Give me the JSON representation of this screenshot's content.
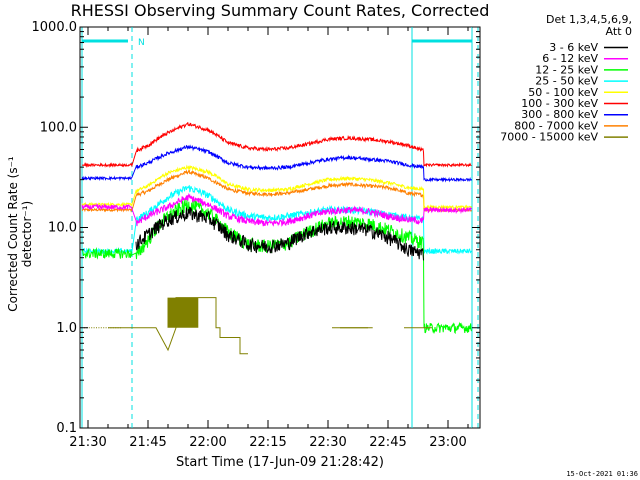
{
  "chart_data": {
    "type": "line",
    "title": "RHESSI Observing Summary Count Rates, Corrected",
    "xlabel": "Start Time (17-Jun-09 21:28:42)",
    "ylabel": "Corrected Count Rate (s⁻¹ detector⁻¹)",
    "yscale": "log",
    "ylim": [
      0.1,
      1000
    ],
    "xlim_minutes": [
      -2,
      98
    ],
    "x_ticks": [
      "21:30",
      "21:45",
      "22:00",
      "22:15",
      "22:30",
      "22:45",
      "23:00"
    ],
    "y_ticks": [
      "0.1",
      "1.0",
      "10.0",
      "100.0",
      "1000.0"
    ],
    "legend_header": [
      "Det 1,3,4,5,6,9,",
      "Att 0"
    ],
    "footer": "15-Oct-2021 01:36",
    "flag_label": "N",
    "series": [
      {
        "name": "3 - 6 keV",
        "color": "#000000",
        "pre": null,
        "post": null,
        "x": [
          12,
          15,
          20,
          25,
          30,
          35,
          40,
          45,
          50,
          55,
          60,
          65,
          70,
          75,
          80,
          84
        ],
        "y": [
          6.8,
          8.5,
          12,
          14,
          12.5,
          8.5,
          6.8,
          6.5,
          7,
          9,
          10,
          10,
          9.5,
          8,
          6,
          5.5
        ]
      },
      {
        "name": "6 - 12 keV",
        "color": "#ff00ff",
        "pre": 16,
        "post": 15,
        "x": [
          12,
          15,
          20,
          25,
          30,
          35,
          40,
          45,
          50,
          55,
          60,
          65,
          70,
          75,
          80,
          84
        ],
        "y": [
          11,
          13,
          16,
          20,
          17,
          13,
          11.5,
          11,
          11.5,
          13,
          14.5,
          15,
          14.5,
          13,
          12,
          11.5
        ]
      },
      {
        "name": "12 - 25 keV",
        "color": "#00ff00",
        "pre": 5.5,
        "post": 1.0,
        "x": [
          12,
          15,
          20,
          25,
          30,
          35,
          40,
          45,
          50,
          55,
          60,
          65,
          70,
          75,
          80,
          84
        ],
        "y": [
          5,
          7.5,
          13,
          17,
          14,
          9,
          6.8,
          6.5,
          7,
          9,
          11,
          11.5,
          11,
          9.5,
          8,
          7
        ]
      },
      {
        "name": "25 - 50 keV",
        "color": "#00ffff",
        "pre": 5.8,
        "post": 5.8,
        "x": [
          12,
          15,
          20,
          25,
          30,
          35,
          40,
          45,
          50,
          55,
          60,
          65,
          70,
          75,
          80,
          84
        ],
        "y": [
          12,
          14,
          20,
          25,
          21,
          15,
          13,
          12.5,
          13,
          14,
          15,
          15,
          14.5,
          13.5,
          12.5,
          12
        ]
      },
      {
        "name": "50 - 100 keV",
        "color": "#ffff00",
        "pre": 17,
        "post": 16,
        "x": [
          12,
          15,
          20,
          25,
          30,
          35,
          40,
          45,
          50,
          55,
          60,
          65,
          70,
          75,
          80,
          84
        ],
        "y": [
          23,
          26,
          35,
          40,
          36,
          27,
          24,
          23.5,
          24,
          27,
          30,
          31,
          30,
          28,
          25,
          24
        ]
      },
      {
        "name": "100 - 300 keV",
        "color": "#ff0000",
        "pre": 42,
        "post": 42,
        "x": [
          12,
          15,
          20,
          25,
          30,
          35,
          40,
          45,
          50,
          55,
          60,
          65,
          70,
          75,
          80,
          84
        ],
        "y": [
          58,
          66,
          88,
          108,
          94,
          70,
          62,
          60,
          62,
          68,
          76,
          78,
          76,
          72,
          66,
          58
        ]
      },
      {
        "name": "300 - 800 keV",
        "color": "#0000ff",
        "pre": 31,
        "post": 30,
        "x": [
          12,
          15,
          20,
          25,
          30,
          35,
          40,
          45,
          50,
          55,
          60,
          65,
          70,
          75,
          80,
          84
        ],
        "y": [
          40,
          44,
          55,
          64,
          57,
          44,
          40,
          39,
          40,
          44,
          48,
          50,
          48,
          46,
          42,
          40
        ]
      },
      {
        "name": "800 - 7000 keV",
        "color": "#ff8000",
        "pre": 15,
        "post": 15,
        "x": [
          12,
          15,
          20,
          25,
          30,
          35,
          40,
          45,
          50,
          55,
          60,
          65,
          70,
          75,
          80,
          84
        ],
        "y": [
          21,
          23,
          30,
          36,
          31,
          24,
          22,
          21.5,
          22,
          24,
          26,
          27,
          26,
          25,
          22,
          21
        ]
      },
      {
        "name": "7000 - 15000 keV",
        "color": "#808000",
        "pre": null,
        "post": null,
        "x": [
          5,
          11,
          17,
          20,
          22,
          22,
          32,
          32,
          33,
          33,
          38,
          38,
          40,
          40,
          61,
          61,
          70,
          70,
          79,
          79,
          86
        ],
        "y": [
          1.0,
          1.0,
          1.0,
          0.6,
          1.0,
          2.0,
          2.0,
          1.0,
          1.0,
          0.8,
          0.8,
          0.55,
          0.55,
          null,
          null,
          1.0,
          1.0,
          null,
          null,
          1.0,
          1.0
        ]
      }
    ],
    "markers": {
      "cyan_solid": [
        -1.5,
        81,
        96
      ],
      "cyan_dashed": [
        11,
        97.5
      ],
      "top_bars": [
        [
          -1.5,
          10
        ],
        [
          81,
          96
        ]
      ]
    }
  }
}
